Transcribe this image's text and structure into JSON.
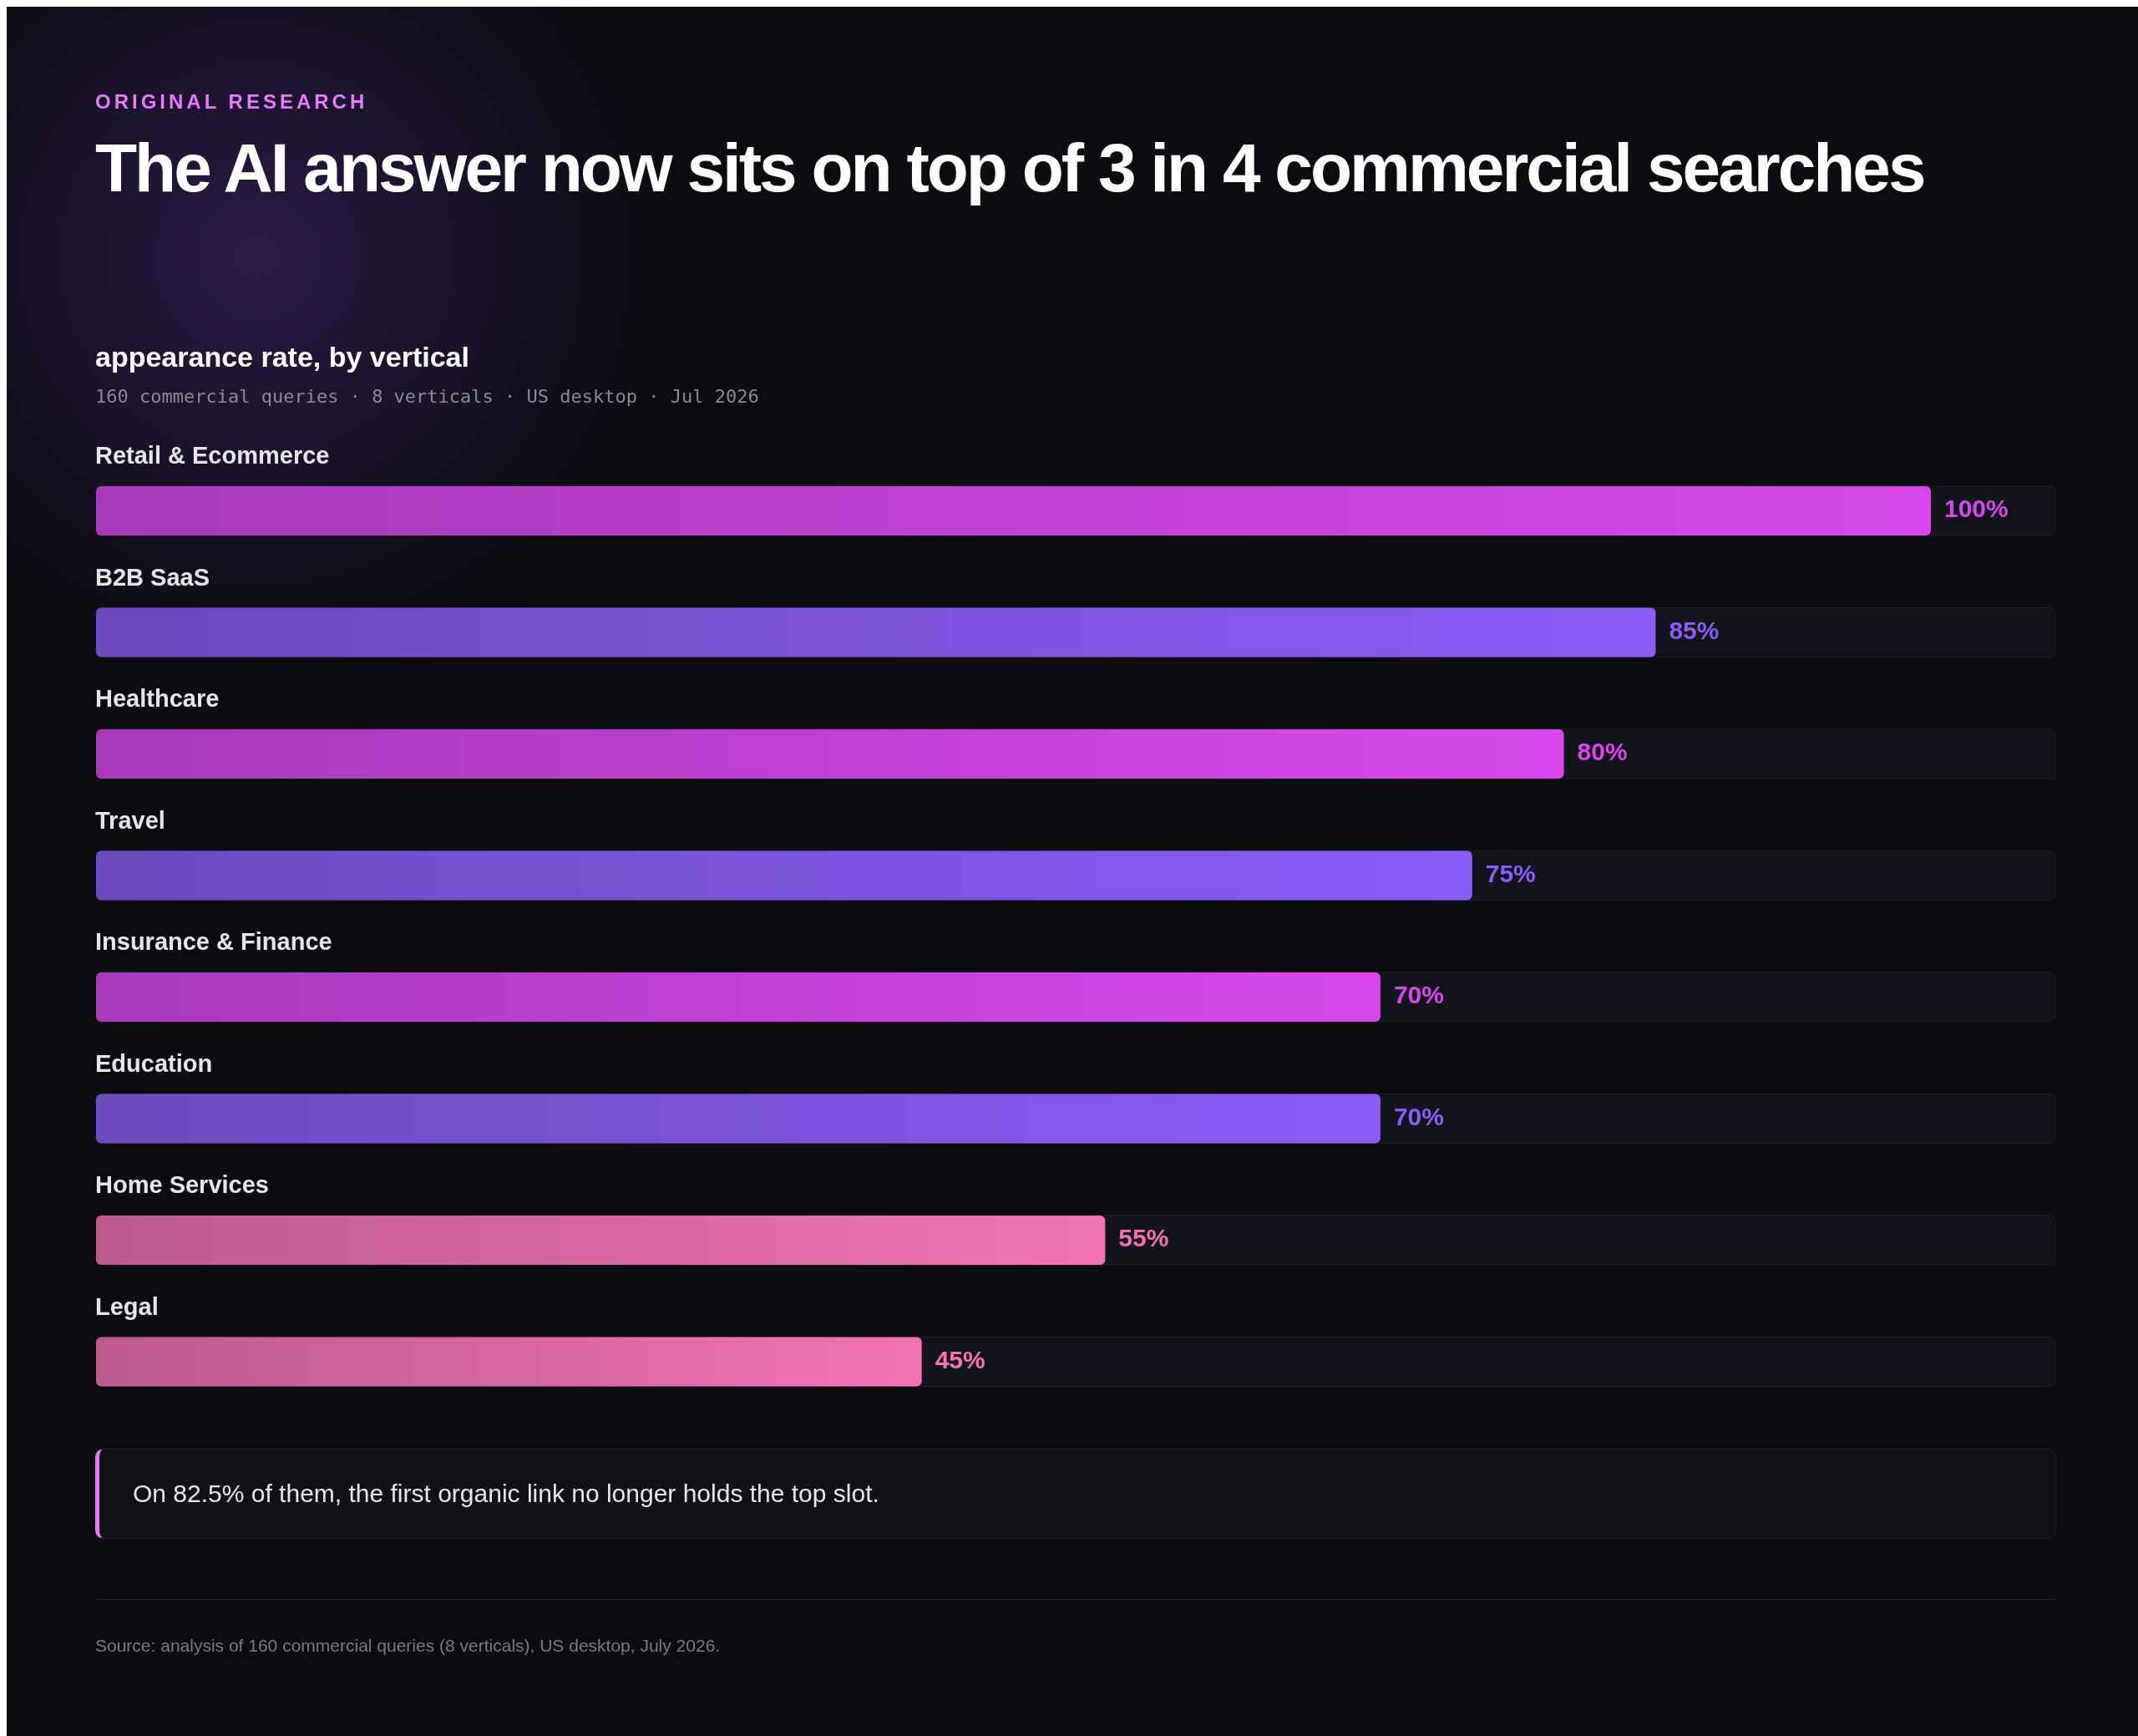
{
  "chart_data": {
    "type": "bar",
    "orientation": "horizontal",
    "title": "The AI answer now sits on top of 3 in 4 commercial searches",
    "subtitle": "appearance rate, by vertical",
    "categories": [
      "Retail & Ecommerce",
      "B2B SaaS",
      "Healthcare",
      "Travel",
      "Insurance & Finance",
      "Education",
      "Home Services",
      "Legal"
    ],
    "values": [
      100,
      85,
      80,
      75,
      70,
      70,
      55,
      45
    ],
    "colors": [
      "#d946ef",
      "#8b5cf6",
      "#d946ef",
      "#8b5cf6",
      "#d946ef",
      "#8b5cf6",
      "#f472b6",
      "#f472b6"
    ],
    "value_labels": [
      "100%",
      "85%",
      "80%",
      "75%",
      "70%",
      "70%",
      "55%",
      "45%"
    ],
    "annotations": [
      "ORIGINAL RESEARCH",
      "160 commercial queries · 8 verticals · US desktop · Jul 2026",
      "On 82.5% of them, the first organic link no longer holds the top slot.",
      "Source: analysis of 160 commercial queries (8 verticals), US desktop, July 2026."
    ]
  }
}
